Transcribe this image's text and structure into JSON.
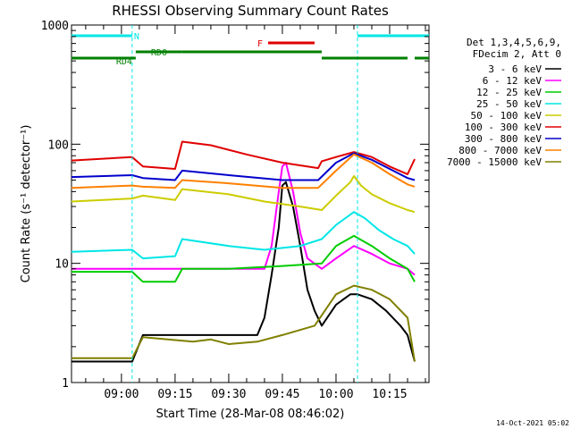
{
  "chart_data": {
    "type": "line",
    "title": "RHESSI Observing Summary Count Rates",
    "xlabel": "Start Time (28-Mar-08 08:46:02)",
    "ylabel": "Count Rate (s⁻¹ detector⁻¹)",
    "yscale": "log",
    "ylim": [
      1,
      1000
    ],
    "xlim": [
      "08:46:02",
      "10:26:00"
    ],
    "xticks": [
      "09:00",
      "09:15",
      "09:30",
      "09:45",
      "10:00",
      "10:15"
    ],
    "yticks": [
      "1",
      "10",
      "100",
      "1000"
    ],
    "footer_stamp": "14-Oct-2021 05:02",
    "legend_header": [
      "Det 1,3,4,5,6,9,",
      "FDecim 2, Att 0"
    ],
    "events": [
      {
        "label": "N",
        "type": "night",
        "color": "#00e6e6",
        "segments": [
          [
            "08:46",
            "09:03"
          ],
          [
            "10:06",
            "10:26"
          ]
        ],
        "marker_times": [
          "09:03",
          "10:06"
        ]
      },
      {
        "label": "F",
        "type": "flare",
        "color": "#e00000",
        "segments": [
          [
            "09:41",
            "09:54"
          ]
        ]
      },
      {
        "label": "RD0",
        "type": "data",
        "color": "#008000",
        "segments": [
          [
            "09:17",
            "09:56"
          ]
        ]
      },
      {
        "label": "RD4",
        "type": "data",
        "color": "#008000",
        "segments": [
          [
            "08:46",
            "09:04"
          ],
          [
            "09:56",
            "10:20"
          ],
          [
            "10:22",
            "10:26"
          ]
        ]
      },
      {
        "label": "",
        "type": "data",
        "color": "#008000",
        "segments": [
          [
            "09:04",
            "09:17"
          ]
        ]
      }
    ],
    "series": [
      {
        "name": "3 - 6 keV",
        "color": "#000000",
        "x": [
          "08:46",
          "09:03",
          "09:06",
          "09:38",
          "09:40",
          "09:42",
          "09:44",
          "09:45",
          "09:46",
          "09:48",
          "09:50",
          "09:52",
          "09:54",
          "09:56",
          "10:00",
          "10:04",
          "10:06",
          "10:10",
          "10:14",
          "10:18",
          "10:20",
          "10:22"
        ],
        "values": [
          1.5,
          1.5,
          2.5,
          2.5,
          3.5,
          8,
          20,
          45,
          48,
          30,
          14,
          6,
          4,
          3,
          4.5,
          5.5,
          5.5,
          5,
          4,
          3,
          2.5,
          1.5
        ]
      },
      {
        "name": "6 - 12 keV",
        "color": "#ff00ff",
        "x": [
          "08:46",
          "09:03",
          "09:06",
          "09:15",
          "09:40",
          "09:42",
          "09:44",
          "09:45",
          "09:46",
          "09:48",
          "09:50",
          "09:52",
          "09:56",
          "10:00",
          "10:05",
          "10:10",
          "10:15",
          "10:20",
          "10:22"
        ],
        "values": [
          9,
          9,
          9,
          9,
          9,
          14,
          40,
          65,
          70,
          40,
          18,
          11,
          9,
          11,
          14,
          12,
          10,
          9,
          8
        ]
      },
      {
        "name": "12 - 25 keV",
        "color": "#00cc00",
        "x": [
          "08:46",
          "09:03",
          "09:06",
          "09:15",
          "09:17",
          "09:30",
          "09:45",
          "09:56",
          "10:00",
          "10:05",
          "10:10",
          "10:15",
          "10:20",
          "10:22"
        ],
        "values": [
          8.5,
          8.5,
          7,
          7,
          9,
          9,
          9.5,
          10,
          14,
          17,
          14,
          11,
          9,
          7
        ]
      },
      {
        "name": "25 - 50 keV",
        "color": "#00e6e6",
        "x": [
          "08:46",
          "09:03",
          "09:06",
          "09:15",
          "09:17",
          "09:30",
          "09:40",
          "09:50",
          "09:56",
          "10:00",
          "10:05",
          "10:08",
          "10:12",
          "10:16",
          "10:20",
          "10:22"
        ],
        "values": [
          12.5,
          13,
          11,
          11.5,
          16,
          14,
          13,
          14,
          16,
          21,
          27,
          24,
          19,
          16,
          14,
          12
        ]
      },
      {
        "name": "50 - 100 keV",
        "color": "#cccc00",
        "x": [
          "08:46",
          "09:03",
          "09:06",
          "09:15",
          "09:17",
          "09:30",
          "09:40",
          "09:50",
          "09:56",
          "10:00",
          "10:04",
          "10:05",
          "10:07",
          "10:10",
          "10:15",
          "10:20",
          "10:22"
        ],
        "values": [
          33,
          35,
          37,
          34,
          42,
          38,
          33,
          30,
          28,
          37,
          48,
          54,
          45,
          38,
          32,
          28,
          27
        ]
      },
      {
        "name": "100 - 300 keV",
        "color": "#e00000",
        "x": [
          "08:46",
          "09:03",
          "09:06",
          "09:15",
          "09:17",
          "09:25",
          "09:35",
          "09:45",
          "09:55",
          "09:56",
          "10:00",
          "10:05",
          "10:10",
          "10:15",
          "10:20",
          "10:22"
        ],
        "values": [
          73,
          78,
          65,
          62,
          105,
          98,
          82,
          70,
          63,
          72,
          78,
          86,
          78,
          65,
          56,
          75
        ]
      },
      {
        "name": "300 - 800 keV",
        "color": "#0000cc",
        "x": [
          "08:46",
          "09:03",
          "09:06",
          "09:15",
          "09:17",
          "09:30",
          "09:45",
          "09:55",
          "10:00",
          "10:05",
          "10:10",
          "10:15",
          "10:20",
          "10:22"
        ],
        "values": [
          53,
          55,
          52,
          50,
          60,
          55,
          50,
          50,
          70,
          84,
          74,
          62,
          52,
          50
        ]
      },
      {
        "name": "800 - 7000 keV",
        "color": "#ff8000",
        "x": [
          "08:46",
          "09:03",
          "09:06",
          "09:15",
          "09:17",
          "09:30",
          "09:45",
          "09:55",
          "10:00",
          "10:05",
          "10:10",
          "10:15",
          "10:20",
          "10:22"
        ],
        "values": [
          43,
          45,
          44,
          43,
          50,
          47,
          43,
          43,
          60,
          82,
          70,
          56,
          46,
          44
        ]
      },
      {
        "name": "7000 - 15000 keV",
        "color": "#808000",
        "x": [
          "08:46",
          "09:03",
          "09:06",
          "09:20",
          "09:25",
          "09:30",
          "09:38",
          "09:45",
          "09:54",
          "10:00",
          "10:05",
          "10:10",
          "10:15",
          "10:20",
          "10:22"
        ],
        "values": [
          1.6,
          1.6,
          2.4,
          2.2,
          2.3,
          2.1,
          2.2,
          2.5,
          3.0,
          5.5,
          6.5,
          6.0,
          5.0,
          3.5,
          1.5
        ]
      }
    ]
  }
}
